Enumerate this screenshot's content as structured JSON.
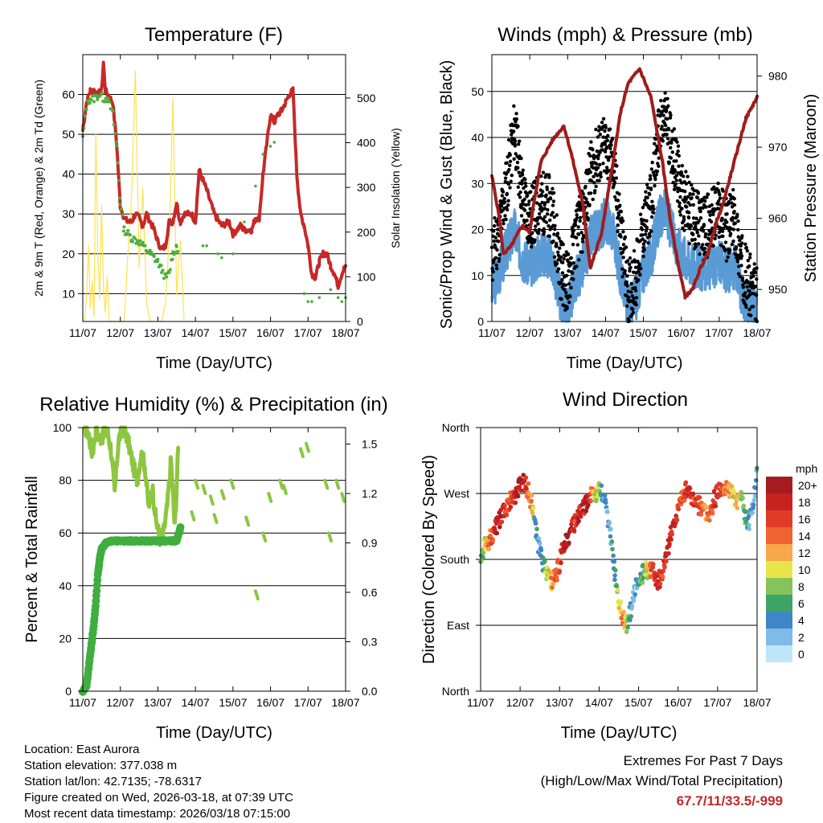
{
  "info": {
    "location": "Location: East Aurora",
    "elevation": "Station elevation: 377.038 m",
    "latlon": "Station lat/lon: 42.7135; -78.6317",
    "created": "Figure created on Wed, 2026-03-18, at 07:39 UTC",
    "recent": "Most recent data timestamp: 2026/03/18 07:15:00"
  },
  "extremes": {
    "title": "Extremes For Past 7 Days",
    "subtitle": "(High/Low/Max Wind/Total Precipitation)",
    "values": "67.7/11/33.5/-999"
  },
  "colors": {
    "temp": "#c62828",
    "dew": "#4caf3c",
    "solar": "#ffe24d",
    "wind": "#5a9bd5",
    "gust": "#000000",
    "pressure": "#a01c1c",
    "rh": "#8dc63f",
    "precip": "#3fae3f"
  },
  "chart_data": [
    {
      "id": "temperature",
      "type": "line",
      "title": "Temperature (F)",
      "xlabel": "Time (Day/UTC)",
      "ylabel": "2m & 9m T (Red, Orange) & 2m Td (Green)",
      "y2label": "Solar Insolation (Yellow)",
      "xticks": [
        "11/07",
        "12/07",
        "13/07",
        "14/07",
        "15/07",
        "16/07",
        "17/07",
        "18/07"
      ],
      "xlim": [
        0,
        7
      ],
      "ylim": [
        3,
        70
      ],
      "yticks": [
        10,
        20,
        30,
        40,
        50,
        60
      ],
      "y2lim": [
        0,
        597
      ],
      "y2ticks": [
        0,
        100,
        200,
        300,
        400,
        500
      ],
      "series": [
        {
          "name": "2m T",
          "x": [
            0,
            0.1,
            0.2,
            0.3,
            0.4,
            0.5,
            0.55,
            0.6,
            0.8,
            0.9,
            1.0,
            1.1,
            1.2,
            1.3,
            1.4,
            1.5,
            1.6,
            1.7,
            1.8,
            1.9,
            2.0,
            2.1,
            2.2,
            2.3,
            2.4,
            2.5,
            2.55,
            2.6,
            2.7,
            2.9,
            3.0,
            3.1,
            3.3,
            3.5,
            3.7,
            3.9,
            4.0,
            4.2,
            4.3,
            4.5,
            4.6,
            4.7,
            4.8,
            5.0,
            5.1,
            5.2,
            5.3,
            5.4,
            5.5,
            5.6,
            5.7,
            5.8,
            5.9,
            6.0,
            6.1,
            6.2,
            6.3,
            6.4,
            6.5,
            6.6,
            6.7,
            6.8,
            6.9,
            7.0
          ],
          "values": [
            51,
            58,
            61,
            61,
            60,
            61,
            68,
            61,
            58,
            48,
            32,
            29,
            28,
            28,
            30,
            29,
            27,
            30,
            28,
            26,
            23,
            21,
            22,
            28,
            28,
            33,
            30,
            28,
            30,
            30,
            28,
            41,
            36,
            30,
            27,
            28,
            25,
            27,
            26,
            26,
            29,
            29,
            40,
            55,
            53,
            55,
            56,
            58,
            60,
            61,
            40,
            30,
            27,
            22,
            15,
            14,
            18,
            20,
            20,
            17,
            15,
            12,
            15,
            17
          ]
        },
        {
          "name": "2m Td",
          "x": [
            0,
            0.1,
            0.2,
            0.3,
            0.45,
            0.55,
            0.65,
            0.8,
            0.9,
            1.0,
            1.1,
            1.2,
            1.3,
            1.5,
            1.6,
            1.7,
            1.8,
            1.9,
            2.0,
            2.1,
            2.2,
            2.3,
            2.4,
            2.5,
            2.55
          ],
          "values": [
            49,
            57,
            59,
            59,
            60,
            59,
            59,
            55,
            47,
            33,
            26,
            25,
            24,
            23,
            22,
            21,
            20,
            19,
            18,
            16,
            14,
            15,
            20,
            22,
            21
          ]
        },
        {
          "name": "Solar",
          "axis": "y2",
          "x": [
            0.05,
            0.1,
            0.15,
            0.2,
            0.25,
            0.3,
            0.35,
            0.4,
            0.45,
            0.5,
            0.55,
            0.6,
            0.65,
            0.7,
            1.1,
            1.2,
            1.3,
            1.4,
            1.5,
            1.6,
            1.7,
            1.8,
            2.1,
            2.2,
            2.3,
            2.4,
            2.5,
            2.6,
            2.7
          ],
          "values": [
            0,
            60,
            170,
            30,
            90,
            10,
            420,
            150,
            50,
            260,
            80,
            20,
            100,
            0,
            0,
            150,
            280,
            560,
            120,
            300,
            40,
            0,
            0,
            40,
            180,
            500,
            60,
            180,
            0
          ]
        }
      ]
    },
    {
      "id": "winds",
      "type": "scatter",
      "title": "Winds (mph) & Pressure (mb)",
      "xlabel": "Time (Day/UTC)",
      "ylabel": "Sonic/Prop Wind & Gust (Blue, Black)",
      "y2label": "Station Pressure (Maroon)",
      "xticks": [
        "11/07",
        "12/07",
        "13/07",
        "14/07",
        "15/07",
        "16/07",
        "17/07",
        "18/07"
      ],
      "xlim": [
        0,
        7
      ],
      "ylim": [
        0,
        58
      ],
      "yticks": [
        0,
        10,
        20,
        30,
        40,
        50
      ],
      "y2lim": [
        945.5,
        983
      ],
      "y2ticks": [
        950,
        960,
        970,
        980
      ],
      "series": [
        {
          "name": "Gust",
          "x": [
            0,
            0.2,
            0.4,
            0.6,
            0.8,
            1.0,
            1.2,
            1.4,
            1.6,
            1.8,
            2.0,
            2.2,
            2.4,
            2.6,
            2.8,
            3.0,
            3.2,
            3.4,
            3.6,
            3.8,
            4.0,
            4.2,
            4.4,
            4.6,
            4.8,
            5.0,
            5.2,
            5.4,
            5.6,
            5.8,
            6.0,
            6.2,
            6.4,
            6.6,
            6.8,
            7.0
          ],
          "values": [
            14,
            20,
            30,
            42,
            28,
            22,
            25,
            26,
            24,
            12,
            8,
            18,
            22,
            32,
            36,
            38,
            34,
            20,
            6,
            10,
            20,
            26,
            40,
            44,
            36,
            28,
            24,
            22,
            20,
            22,
            24,
            20,
            22,
            12,
            8,
            5
          ]
        },
        {
          "name": "Wind",
          "x": [
            0,
            0.2,
            0.4,
            0.6,
            0.8,
            1.0,
            1.2,
            1.4,
            1.6,
            1.8,
            2.0,
            2.2,
            2.4,
            2.6,
            2.8,
            3.0,
            3.2,
            3.4,
            3.6,
            3.8,
            4.0,
            4.2,
            4.4,
            4.6,
            4.8,
            5.0,
            5.2,
            5.4,
            5.6,
            5.8,
            6.0,
            6.2,
            6.4,
            6.6,
            6.8,
            7.0
          ],
          "values": [
            7,
            11,
            16,
            20,
            14,
            12,
            14,
            15,
            13,
            5,
            2,
            9,
            12,
            18,
            20,
            22,
            20,
            10,
            3,
            5,
            11,
            14,
            22,
            24,
            18,
            15,
            13,
            12,
            11,
            12,
            13,
            11,
            12,
            6,
            4,
            3
          ]
        },
        {
          "name": "Pressure",
          "axis": "y2",
          "x": [
            0,
            0.2,
            0.3,
            0.5,
            0.8,
            1.0,
            1.1,
            1.3,
            1.6,
            1.9,
            2.1,
            2.4,
            2.6,
            2.9,
            3.2,
            3.4,
            3.6,
            3.9,
            4.2,
            4.5,
            4.7,
            4.9,
            5.1,
            5.3,
            5.5,
            5.7,
            5.9,
            6.1,
            6.3,
            6.5,
            6.7,
            6.9,
            7.0
          ],
          "values": [
            966,
            960,
            955,
            956,
            959,
            958,
            962,
            968,
            971,
            973,
            969,
            962,
            953,
            958,
            968,
            975,
            979,
            981,
            977,
            968,
            960,
            954,
            949,
            950,
            953,
            955,
            959,
            962,
            966,
            970,
            974,
            976,
            977
          ]
        }
      ]
    },
    {
      "id": "humidity",
      "type": "line",
      "title": "Relative Humidity (%) & Precipitation (in)",
      "xlabel": "Time (Day/UTC)",
      "ylabel": "Percent & Total Rainfall",
      "xticks": [
        "11/07",
        "12/07",
        "13/07",
        "14/07",
        "15/07",
        "16/07",
        "17/07",
        "18/07"
      ],
      "xlim": [
        0,
        7
      ],
      "ylim": [
        0,
        100
      ],
      "yticks": [
        0,
        20,
        40,
        60,
        80,
        100
      ],
      "y2lim": [
        0,
        1.6
      ],
      "y2ticks": [
        "0.0",
        "0.3",
        "0.6",
        "0.9",
        "1.2",
        "1.5"
      ],
      "series": [
        {
          "name": "RH",
          "x": [
            0.05,
            0.15,
            0.25,
            0.35,
            0.45,
            0.55,
            0.65,
            0.75,
            0.85,
            0.95,
            1.05,
            1.15,
            1.25,
            1.35,
            1.45,
            1.55,
            1.65,
            1.75,
            1.85,
            1.95,
            2.05,
            2.15,
            2.25,
            2.35,
            2.45,
            2.55
          ],
          "values": [
            100,
            98,
            90,
            99,
            96,
            97,
            99,
            92,
            75,
            95,
            100,
            98,
            92,
            85,
            80,
            90,
            86,
            70,
            78,
            65,
            58,
            60,
            70,
            88,
            62,
            95
          ]
        },
        {
          "name": "RH dots",
          "x": [
            2.9,
            3.0,
            3.2,
            3.4,
            3.5,
            3.7,
            3.95,
            4.35,
            4.6,
            4.8,
            4.95,
            5.25,
            5.35,
            5.8,
            5.95,
            6.45,
            6.55,
            6.75,
            6.9
          ],
          "values": [
            68,
            80,
            78,
            74,
            67,
            76,
            80,
            66,
            38,
            60,
            75,
            80,
            78,
            92,
            94,
            80,
            60,
            80,
            75
          ]
        },
        {
          "name": "Precip",
          "x": [
            0,
            0.1,
            0.15,
            0.2,
            0.25,
            0.3,
            0.35,
            0.4,
            0.45,
            0.5,
            0.55,
            0.6,
            0.7,
            0.8,
            0.9,
            1.0,
            1.5,
            2.0,
            2.5,
            2.6
          ],
          "values": [
            0,
            2,
            8,
            14,
            20,
            26,
            34,
            44,
            50,
            54,
            55,
            56,
            57,
            57,
            57,
            57,
            57,
            57,
            57,
            62
          ]
        }
      ]
    },
    {
      "id": "direction",
      "type": "scatter",
      "title": "Wind Direction",
      "xlabel": "Time (Day/UTC)",
      "ylabel": "Direction (Colored By Speed)",
      "xticks": [
        "11/07",
        "12/07",
        "13/07",
        "14/07",
        "15/07",
        "16/07",
        "17/07",
        "18/07"
      ],
      "xlim": [
        0,
        7
      ],
      "ylim": [
        0,
        360
      ],
      "yticklabels": [
        "North",
        "East",
        "South",
        "West",
        "North"
      ],
      "legend_title": "mph",
      "legend_labels": [
        "20+",
        "18",
        "16",
        "14",
        "12",
        "10",
        "8",
        "6",
        "4",
        "2",
        "0"
      ],
      "legend_colors": [
        "#a51c20",
        "#c8221f",
        "#e03b27",
        "#ef6332",
        "#f7a84a",
        "#e8e44a",
        "#86c35a",
        "#3da467",
        "#3f86c6",
        "#7fbbe6",
        "#bfe5f8"
      ],
      "series": [
        {
          "name": "Direction",
          "x": [
            0,
            0.1,
            0.2,
            0.3,
            0.4,
            0.5,
            0.6,
            0.7,
            0.8,
            0.9,
            1.0,
            1.1,
            1.2,
            1.3,
            1.4,
            1.5,
            1.6,
            1.7,
            1.8,
            1.9,
            2.0,
            2.1,
            2.2,
            2.3,
            2.4,
            2.5,
            2.6,
            2.7,
            2.8,
            2.9,
            3.0,
            3.1,
            3.2,
            3.3,
            3.4,
            3.5,
            3.6,
            3.7,
            3.8,
            3.9,
            4.0,
            4.1,
            4.2,
            4.3,
            4.4,
            4.5,
            4.6,
            4.7,
            4.8,
            4.9,
            5.0,
            5.1,
            5.2,
            5.3,
            5.4,
            5.5,
            5.6,
            5.7,
            5.8,
            5.9,
            6.0,
            6.1,
            6.2,
            6.3,
            6.4,
            6.5,
            6.6,
            6.7,
            6.8,
            6.9,
            7.0
          ],
          "values": [
            180,
            200,
            205,
            215,
            225,
            235,
            245,
            255,
            265,
            270,
            280,
            285,
            275,
            255,
            220,
            190,
            170,
            160,
            150,
            155,
            175,
            200,
            210,
            220,
            230,
            240,
            250,
            260,
            270,
            270,
            275,
            270,
            240,
            210,
            160,
            120,
            100,
            90,
            110,
            140,
            155,
            160,
            165,
            165,
            160,
            150,
            160,
            180,
            210,
            230,
            250,
            265,
            275,
            270,
            265,
            255,
            250,
            245,
            240,
            260,
            270,
            275,
            280,
            275,
            265,
            260,
            270,
            240,
            230,
            250,
            300
          ],
          "speed": [
            4,
            10,
            14,
            16,
            18,
            18,
            18,
            14,
            16,
            18,
            20,
            18,
            14,
            12,
            4,
            3,
            6,
            10,
            12,
            14,
            16,
            18,
            20,
            18,
            16,
            18,
            18,
            20,
            14,
            10,
            8,
            4,
            2,
            4,
            6,
            10,
            14,
            8,
            4,
            2,
            4,
            6,
            10,
            14,
            16,
            18,
            16,
            18,
            18,
            18,
            16,
            14,
            16,
            18,
            16,
            16,
            14,
            12,
            14,
            16,
            18,
            16,
            14,
            12,
            10,
            12,
            8,
            6,
            4,
            2,
            4
          ]
        }
      ]
    }
  ]
}
